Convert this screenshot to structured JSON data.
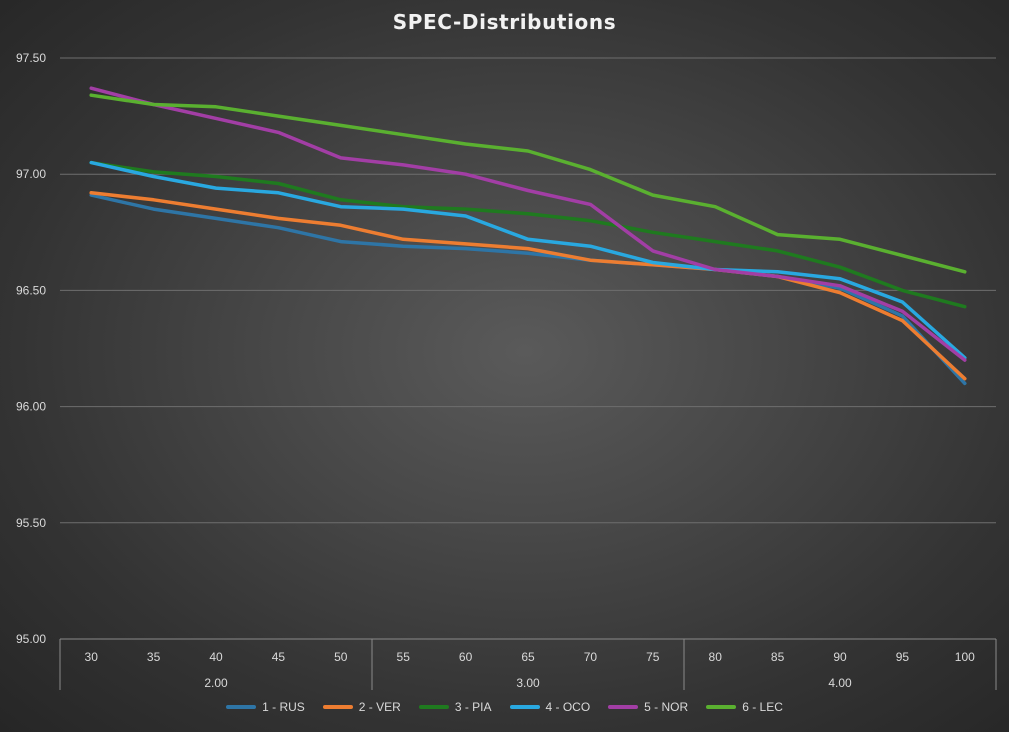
{
  "chart_data": {
    "type": "line",
    "title": "SPEC-Distributions",
    "xlabel": "",
    "ylabel": "",
    "ylim": [
      95.0,
      97.5
    ],
    "y_ticks": [
      "95.00",
      "95.50",
      "96.00",
      "96.50",
      "97.00",
      "97.50"
    ],
    "x": [
      30,
      35,
      40,
      45,
      50,
      55,
      60,
      65,
      70,
      75,
      80,
      85,
      90,
      95,
      100
    ],
    "x_groups": [
      {
        "label": "2.00",
        "from": 30,
        "to": 50
      },
      {
        "label": "3.00",
        "from": 55,
        "to": 75
      },
      {
        "label": "4.00",
        "from": 80,
        "to": 100
      }
    ],
    "grid": true,
    "legend_position": "bottom",
    "series": [
      {
        "name": "1 - RUS",
        "color": "#2e75a6",
        "values": [
          96.91,
          96.85,
          96.81,
          96.77,
          96.71,
          96.69,
          96.68,
          96.66,
          96.63,
          96.61,
          96.59,
          96.56,
          96.51,
          96.39,
          96.1
        ]
      },
      {
        "name": "2 - VER",
        "color": "#ed7d31",
        "values": [
          96.92,
          96.89,
          96.85,
          96.81,
          96.78,
          96.72,
          96.7,
          96.68,
          96.63,
          96.61,
          96.59,
          96.56,
          96.49,
          96.37,
          96.12
        ]
      },
      {
        "name": "3 - PIA",
        "color": "#1f7a1f",
        "values": [
          97.05,
          97.01,
          96.99,
          96.96,
          96.89,
          96.86,
          96.85,
          96.83,
          96.8,
          96.75,
          96.71,
          96.67,
          96.6,
          96.5,
          96.43
        ]
      },
      {
        "name": "4 - OCO",
        "color": "#29a8e0",
        "values": [
          97.05,
          96.99,
          96.94,
          96.92,
          96.86,
          96.85,
          96.82,
          96.72,
          96.69,
          96.62,
          96.59,
          96.58,
          96.55,
          96.45,
          96.21
        ]
      },
      {
        "name": "5 - NOR",
        "color": "#a23ea5",
        "values": [
          97.37,
          97.3,
          97.24,
          97.18,
          97.07,
          97.04,
          97.0,
          96.93,
          96.87,
          96.67,
          96.59,
          96.56,
          96.52,
          96.41,
          96.2
        ]
      },
      {
        "name": "6 - LEC",
        "color": "#5ab030",
        "values": [
          97.34,
          97.3,
          97.29,
          97.25,
          97.21,
          97.17,
          97.13,
          97.1,
          97.02,
          96.91,
          96.86,
          96.74,
          96.72,
          96.65,
          96.58
        ]
      }
    ]
  }
}
